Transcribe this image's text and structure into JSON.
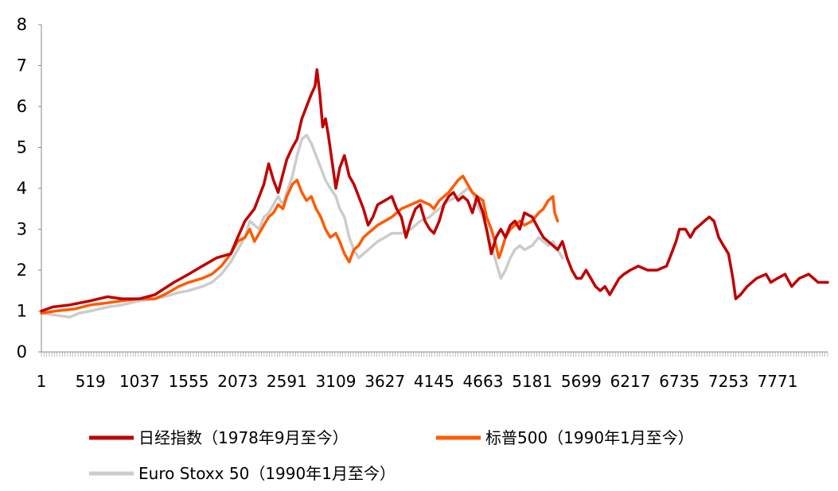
{
  "chart_data": {
    "type": "line",
    "title": "",
    "xlabel": "",
    "ylabel": "",
    "xlim": [
      1,
      8300
    ],
    "ylim": [
      0,
      8
    ],
    "yticks": [
      "0",
      "1",
      "2",
      "3",
      "4",
      "5",
      "6",
      "7",
      "8"
    ],
    "xticks": [
      "1",
      "519",
      "1037",
      "1555",
      "2073",
      "2591",
      "3109",
      "3627",
      "4145",
      "4663",
      "5181",
      "5699",
      "6217",
      "6735",
      "7253",
      "7771"
    ],
    "grid": false,
    "legend_position": "bottom",
    "series": [
      {
        "name": "日经指数（1978年9月至今）",
        "color": "#c00000",
        "points": [
          [
            1,
            1.0
          ],
          [
            120,
            1.1
          ],
          [
            300,
            1.15
          ],
          [
            519,
            1.25
          ],
          [
            700,
            1.35
          ],
          [
            850,
            1.3
          ],
          [
            1037,
            1.3
          ],
          [
            1200,
            1.4
          ],
          [
            1400,
            1.7
          ],
          [
            1555,
            1.9
          ],
          [
            1700,
            2.1
          ],
          [
            1850,
            2.3
          ],
          [
            2000,
            2.4
          ],
          [
            2073,
            2.8
          ],
          [
            2150,
            3.2
          ],
          [
            2250,
            3.5
          ],
          [
            2350,
            4.1
          ],
          [
            2400,
            4.6
          ],
          [
            2450,
            4.2
          ],
          [
            2500,
            3.9
          ],
          [
            2591,
            4.7
          ],
          [
            2650,
            5.0
          ],
          [
            2700,
            5.2
          ],
          [
            2750,
            5.7
          ],
          [
            2800,
            6.0
          ],
          [
            2850,
            6.3
          ],
          [
            2890,
            6.5
          ],
          [
            2910,
            6.9
          ],
          [
            2940,
            6.3
          ],
          [
            2970,
            5.5
          ],
          [
            3000,
            5.7
          ],
          [
            3030,
            5.3
          ],
          [
            3060,
            4.8
          ],
          [
            3109,
            4.0
          ],
          [
            3150,
            4.5
          ],
          [
            3200,
            4.8
          ],
          [
            3250,
            4.3
          ],
          [
            3300,
            4.1
          ],
          [
            3350,
            3.8
          ],
          [
            3400,
            3.5
          ],
          [
            3450,
            3.1
          ],
          [
            3500,
            3.3
          ],
          [
            3550,
            3.6
          ],
          [
            3627,
            3.7
          ],
          [
            3700,
            3.8
          ],
          [
            3750,
            3.5
          ],
          [
            3800,
            3.3
          ],
          [
            3850,
            2.8
          ],
          [
            3900,
            3.2
          ],
          [
            3950,
            3.5
          ],
          [
            4000,
            3.6
          ],
          [
            4050,
            3.2
          ],
          [
            4100,
            3.0
          ],
          [
            4145,
            2.9
          ],
          [
            4200,
            3.2
          ],
          [
            4250,
            3.6
          ],
          [
            4300,
            3.8
          ],
          [
            4350,
            3.9
          ],
          [
            4400,
            3.7
          ],
          [
            4450,
            3.8
          ],
          [
            4500,
            3.7
          ],
          [
            4550,
            3.4
          ],
          [
            4600,
            3.8
          ],
          [
            4663,
            3.4
          ],
          [
            4700,
            3.0
          ],
          [
            4750,
            2.4
          ],
          [
            4800,
            2.8
          ],
          [
            4850,
            3.0
          ],
          [
            4900,
            2.8
          ],
          [
            4950,
            3.1
          ],
          [
            5000,
            3.2
          ],
          [
            5050,
            3.0
          ],
          [
            5100,
            3.4
          ],
          [
            5181,
            3.3
          ],
          [
            5250,
            3.0
          ],
          [
            5300,
            2.8
          ],
          [
            5350,
            2.7
          ],
          [
            5400,
            2.6
          ],
          [
            5450,
            2.5
          ],
          [
            5500,
            2.7
          ],
          [
            5550,
            2.3
          ],
          [
            5600,
            2.0
          ],
          [
            5650,
            1.8
          ],
          [
            5699,
            1.8
          ],
          [
            5750,
            2.0
          ],
          [
            5800,
            1.8
          ],
          [
            5850,
            1.6
          ],
          [
            5900,
            1.5
          ],
          [
            5950,
            1.6
          ],
          [
            6000,
            1.4
          ],
          [
            6050,
            1.6
          ],
          [
            6100,
            1.8
          ],
          [
            6150,
            1.9
          ],
          [
            6217,
            2.0
          ],
          [
            6300,
            2.1
          ],
          [
            6400,
            2.0
          ],
          [
            6500,
            2.0
          ],
          [
            6600,
            2.1
          ],
          [
            6650,
            2.4
          ],
          [
            6700,
            2.7
          ],
          [
            6735,
            3.0
          ],
          [
            6800,
            3.0
          ],
          [
            6850,
            2.8
          ],
          [
            6900,
            3.0
          ],
          [
            6950,
            3.1
          ],
          [
            7000,
            3.2
          ],
          [
            7050,
            3.3
          ],
          [
            7100,
            3.2
          ],
          [
            7150,
            2.8
          ],
          [
            7200,
            2.6
          ],
          [
            7253,
            2.4
          ],
          [
            7300,
            1.8
          ],
          [
            7330,
            1.3
          ],
          [
            7380,
            1.4
          ],
          [
            7450,
            1.6
          ],
          [
            7550,
            1.8
          ],
          [
            7650,
            1.9
          ],
          [
            7700,
            1.7
          ],
          [
            7771,
            1.8
          ],
          [
            7850,
            1.9
          ],
          [
            7920,
            1.6
          ],
          [
            8000,
            1.8
          ],
          [
            8100,
            1.9
          ],
          [
            8200,
            1.7
          ],
          [
            8300,
            1.7
          ]
        ]
      },
      {
        "name": "标普500（1990年1月至今）",
        "color": "#ff5a00",
        "points": [
          [
            1,
            0.95
          ],
          [
            150,
            1.0
          ],
          [
            350,
            1.05
          ],
          [
            519,
            1.15
          ],
          [
            700,
            1.2
          ],
          [
            850,
            1.25
          ],
          [
            1037,
            1.3
          ],
          [
            1200,
            1.3
          ],
          [
            1300,
            1.4
          ],
          [
            1450,
            1.6
          ],
          [
            1555,
            1.7
          ],
          [
            1700,
            1.8
          ],
          [
            1800,
            1.9
          ],
          [
            1900,
            2.1
          ],
          [
            2000,
            2.4
          ],
          [
            2073,
            2.7
          ],
          [
            2150,
            2.8
          ],
          [
            2200,
            3.0
          ],
          [
            2250,
            2.7
          ],
          [
            2300,
            2.9
          ],
          [
            2350,
            3.1
          ],
          [
            2400,
            3.3
          ],
          [
            2450,
            3.4
          ],
          [
            2500,
            3.6
          ],
          [
            2550,
            3.5
          ],
          [
            2591,
            3.8
          ],
          [
            2650,
            4.1
          ],
          [
            2700,
            4.2
          ],
          [
            2750,
            3.9
          ],
          [
            2800,
            3.7
          ],
          [
            2850,
            3.8
          ],
          [
            2900,
            3.5
          ],
          [
            2950,
            3.3
          ],
          [
            3000,
            3.0
          ],
          [
            3050,
            2.8
          ],
          [
            3109,
            2.9
          ],
          [
            3150,
            2.7
          ],
          [
            3200,
            2.4
          ],
          [
            3250,
            2.2
          ],
          [
            3300,
            2.5
          ],
          [
            3350,
            2.6
          ],
          [
            3400,
            2.8
          ],
          [
            3450,
            2.9
          ],
          [
            3500,
            3.0
          ],
          [
            3550,
            3.1
          ],
          [
            3627,
            3.2
          ],
          [
            3700,
            3.3
          ],
          [
            3800,
            3.5
          ],
          [
            3900,
            3.6
          ],
          [
            4000,
            3.7
          ],
          [
            4100,
            3.6
          ],
          [
            4145,
            3.5
          ],
          [
            4200,
            3.7
          ],
          [
            4300,
            3.9
          ],
          [
            4400,
            4.2
          ],
          [
            4450,
            4.3
          ],
          [
            4500,
            4.1
          ],
          [
            4550,
            3.9
          ],
          [
            4600,
            3.8
          ],
          [
            4663,
            3.7
          ],
          [
            4700,
            3.3
          ],
          [
            4750,
            3.0
          ],
          [
            4800,
            2.6
          ],
          [
            4830,
            2.3
          ],
          [
            4860,
            2.5
          ],
          [
            4900,
            2.8
          ],
          [
            4950,
            3.0
          ],
          [
            5000,
            3.1
          ],
          [
            5050,
            3.2
          ],
          [
            5100,
            3.1
          ],
          [
            5181,
            3.2
          ],
          [
            5250,
            3.4
          ],
          [
            5300,
            3.5
          ],
          [
            5350,
            3.7
          ],
          [
            5400,
            3.8
          ],
          [
            5420,
            3.4
          ],
          [
            5450,
            3.2
          ]
        ]
      },
      {
        "name": "Euro Stoxx 50（1990年1月至今）",
        "color": "#cccccc",
        "points": [
          [
            1,
            0.95
          ],
          [
            150,
            0.9
          ],
          [
            300,
            0.85
          ],
          [
            400,
            0.95
          ],
          [
            519,
            1.0
          ],
          [
            700,
            1.1
          ],
          [
            850,
            1.15
          ],
          [
            1037,
            1.25
          ],
          [
            1200,
            1.3
          ],
          [
            1300,
            1.35
          ],
          [
            1450,
            1.45
          ],
          [
            1555,
            1.5
          ],
          [
            1700,
            1.6
          ],
          [
            1800,
            1.7
          ],
          [
            1900,
            1.9
          ],
          [
            2000,
            2.2
          ],
          [
            2073,
            2.5
          ],
          [
            2150,
            2.8
          ],
          [
            2200,
            3.2
          ],
          [
            2250,
            3.1
          ],
          [
            2300,
            3.0
          ],
          [
            2350,
            3.3
          ],
          [
            2400,
            3.4
          ],
          [
            2450,
            3.6
          ],
          [
            2500,
            3.8
          ],
          [
            2550,
            3.6
          ],
          [
            2591,
            3.9
          ],
          [
            2650,
            4.3
          ],
          [
            2700,
            4.8
          ],
          [
            2750,
            5.2
          ],
          [
            2800,
            5.3
          ],
          [
            2850,
            5.1
          ],
          [
            2900,
            4.8
          ],
          [
            2950,
            4.5
          ],
          [
            3000,
            4.2
          ],
          [
            3050,
            4.0
          ],
          [
            3109,
            3.8
          ],
          [
            3150,
            3.5
          ],
          [
            3200,
            3.3
          ],
          [
            3250,
            2.8
          ],
          [
            3300,
            2.5
          ],
          [
            3350,
            2.3
          ],
          [
            3400,
            2.4
          ],
          [
            3450,
            2.5
          ],
          [
            3500,
            2.6
          ],
          [
            3550,
            2.7
          ],
          [
            3627,
            2.8
          ],
          [
            3700,
            2.9
          ],
          [
            3800,
            2.9
          ],
          [
            3900,
            3.0
          ],
          [
            4000,
            3.2
          ],
          [
            4100,
            3.3
          ],
          [
            4145,
            3.4
          ],
          [
            4200,
            3.5
          ],
          [
            4300,
            3.7
          ],
          [
            4400,
            3.8
          ],
          [
            4500,
            4.0
          ],
          [
            4550,
            3.9
          ],
          [
            4600,
            3.6
          ],
          [
            4663,
            3.3
          ],
          [
            4700,
            3.0
          ],
          [
            4750,
            2.6
          ],
          [
            4800,
            2.2
          ],
          [
            4850,
            1.8
          ],
          [
            4900,
            2.0
          ],
          [
            4950,
            2.3
          ],
          [
            5000,
            2.5
          ],
          [
            5050,
            2.6
          ],
          [
            5100,
            2.5
          ],
          [
            5181,
            2.6
          ],
          [
            5250,
            2.8
          ],
          [
            5300,
            2.7
          ],
          [
            5350,
            2.6
          ],
          [
            5400,
            2.7
          ],
          [
            5450,
            2.5
          ],
          [
            5500,
            2.3
          ]
        ]
      }
    ]
  }
}
